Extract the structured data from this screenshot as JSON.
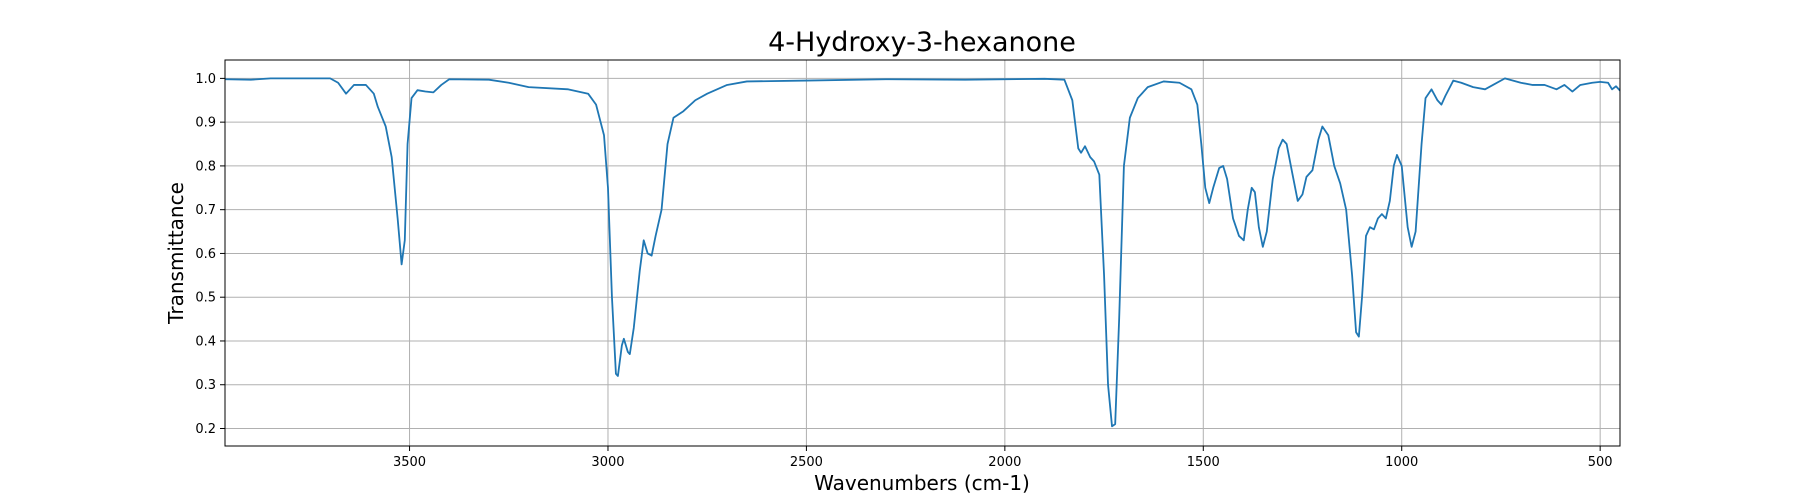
{
  "chart_data": {
    "type": "line",
    "title": "4-Hydroxy-3-hexanone",
    "xlabel": "Wavenumbers (cm-1)",
    "ylabel": "Transmittance",
    "xlim": [
      3965,
      450
    ],
    "x_reversed": true,
    "ylim": [
      0.16,
      1.042
    ],
    "grid": true,
    "xticks": [
      3500,
      3000,
      2500,
      2000,
      1500,
      1000,
      500
    ],
    "yticks": [
      0.2,
      0.3,
      0.4,
      0.5,
      0.6,
      0.7,
      0.8,
      0.9,
      1.0
    ],
    "series": [
      {
        "color": "#1f77b4",
        "points": [
          [
            3965,
            0.998
          ],
          [
            3900,
            0.997
          ],
          [
            3850,
            1.0
          ],
          [
            3800,
            1.0
          ],
          [
            3700,
            1.0
          ],
          [
            3680,
            0.99
          ],
          [
            3660,
            0.965
          ],
          [
            3640,
            0.985
          ],
          [
            3610,
            0.985
          ],
          [
            3590,
            0.965
          ],
          [
            3580,
            0.935
          ],
          [
            3560,
            0.89
          ],
          [
            3545,
            0.82
          ],
          [
            3530,
            0.68
          ],
          [
            3520,
            0.575
          ],
          [
            3512,
            0.63
          ],
          [
            3505,
            0.85
          ],
          [
            3495,
            0.955
          ],
          [
            3480,
            0.973
          ],
          [
            3460,
            0.97
          ],
          [
            3440,
            0.968
          ],
          [
            3420,
            0.985
          ],
          [
            3400,
            0.998
          ],
          [
            3300,
            0.997
          ],
          [
            3250,
            0.99
          ],
          [
            3200,
            0.98
          ],
          [
            3100,
            0.975
          ],
          [
            3050,
            0.965
          ],
          [
            3030,
            0.94
          ],
          [
            3010,
            0.87
          ],
          [
            3000,
            0.75
          ],
          [
            2990,
            0.5
          ],
          [
            2980,
            0.325
          ],
          [
            2975,
            0.32
          ],
          [
            2965,
            0.39
          ],
          [
            2960,
            0.405
          ],
          [
            2950,
            0.375
          ],
          [
            2945,
            0.37
          ],
          [
            2935,
            0.43
          ],
          [
            2920,
            0.56
          ],
          [
            2910,
            0.63
          ],
          [
            2900,
            0.6
          ],
          [
            2890,
            0.595
          ],
          [
            2880,
            0.64
          ],
          [
            2865,
            0.7
          ],
          [
            2850,
            0.85
          ],
          [
            2835,
            0.91
          ],
          [
            2810,
            0.925
          ],
          [
            2780,
            0.95
          ],
          [
            2750,
            0.965
          ],
          [
            2700,
            0.985
          ],
          [
            2650,
            0.993
          ],
          [
            2500,
            0.995
          ],
          [
            2300,
            0.998
          ],
          [
            2100,
            0.997
          ],
          [
            1900,
            0.999
          ],
          [
            1850,
            0.997
          ],
          [
            1830,
            0.95
          ],
          [
            1815,
            0.84
          ],
          [
            1808,
            0.83
          ],
          [
            1798,
            0.845
          ],
          [
            1785,
            0.82
          ],
          [
            1775,
            0.81
          ],
          [
            1762,
            0.78
          ],
          [
            1750,
            0.55
          ],
          [
            1740,
            0.3
          ],
          [
            1730,
            0.205
          ],
          [
            1722,
            0.21
          ],
          [
            1712,
            0.45
          ],
          [
            1700,
            0.8
          ],
          [
            1685,
            0.91
          ],
          [
            1665,
            0.955
          ],
          [
            1640,
            0.98
          ],
          [
            1600,
            0.993
          ],
          [
            1560,
            0.99
          ],
          [
            1530,
            0.975
          ],
          [
            1515,
            0.94
          ],
          [
            1505,
            0.85
          ],
          [
            1495,
            0.75
          ],
          [
            1485,
            0.715
          ],
          [
            1475,
            0.75
          ],
          [
            1460,
            0.795
          ],
          [
            1450,
            0.8
          ],
          [
            1440,
            0.77
          ],
          [
            1425,
            0.68
          ],
          [
            1410,
            0.64
          ],
          [
            1398,
            0.63
          ],
          [
            1388,
            0.7
          ],
          [
            1378,
            0.75
          ],
          [
            1370,
            0.74
          ],
          [
            1360,
            0.66
          ],
          [
            1350,
            0.615
          ],
          [
            1340,
            0.65
          ],
          [
            1325,
            0.77
          ],
          [
            1310,
            0.84
          ],
          [
            1300,
            0.86
          ],
          [
            1290,
            0.85
          ],
          [
            1275,
            0.78
          ],
          [
            1262,
            0.72
          ],
          [
            1250,
            0.735
          ],
          [
            1240,
            0.775
          ],
          [
            1225,
            0.79
          ],
          [
            1210,
            0.86
          ],
          [
            1200,
            0.89
          ],
          [
            1185,
            0.87
          ],
          [
            1170,
            0.8
          ],
          [
            1155,
            0.76
          ],
          [
            1140,
            0.7
          ],
          [
            1125,
            0.55
          ],
          [
            1115,
            0.42
          ],
          [
            1108,
            0.41
          ],
          [
            1100,
            0.5
          ],
          [
            1090,
            0.64
          ],
          [
            1080,
            0.66
          ],
          [
            1070,
            0.655
          ],
          [
            1060,
            0.68
          ],
          [
            1050,
            0.69
          ],
          [
            1040,
            0.68
          ],
          [
            1030,
            0.72
          ],
          [
            1020,
            0.8
          ],
          [
            1012,
            0.825
          ],
          [
            1000,
            0.8
          ],
          [
            985,
            0.66
          ],
          [
            975,
            0.615
          ],
          [
            965,
            0.65
          ],
          [
            950,
            0.85
          ],
          [
            940,
            0.955
          ],
          [
            925,
            0.975
          ],
          [
            910,
            0.95
          ],
          [
            900,
            0.94
          ],
          [
            890,
            0.96
          ],
          [
            870,
            0.995
          ],
          [
            850,
            0.99
          ],
          [
            820,
            0.98
          ],
          [
            790,
            0.975
          ],
          [
            770,
            0.985
          ],
          [
            740,
            1.0
          ],
          [
            700,
            0.99
          ],
          [
            670,
            0.985
          ],
          [
            640,
            0.985
          ],
          [
            610,
            0.975
          ],
          [
            590,
            0.985
          ],
          [
            570,
            0.97
          ],
          [
            550,
            0.985
          ],
          [
            520,
            0.99
          ],
          [
            500,
            0.992
          ],
          [
            480,
            0.99
          ],
          [
            470,
            0.975
          ],
          [
            460,
            0.982
          ],
          [
            450,
            0.972
          ]
        ]
      }
    ]
  }
}
